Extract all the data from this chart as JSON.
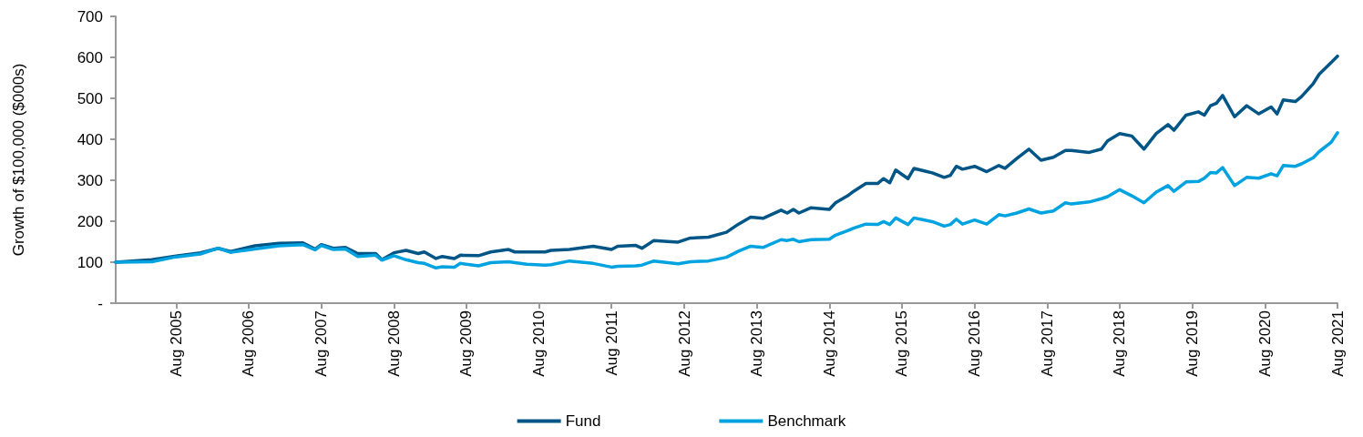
{
  "chart_data": {
    "type": "line",
    "ylabel": "Growth of $100,000 ($000s)",
    "x": [
      "2004-10",
      "2005-04",
      "2005-08",
      "2005-12",
      "2006-03",
      "2006-05",
      "2006-09",
      "2007-01",
      "2007-05",
      "2007-07",
      "2007-08",
      "2007-10",
      "2007-12",
      "2008-02",
      "2008-05",
      "2008-06",
      "2008-08",
      "2008-10",
      "2008-12",
      "2009-01",
      "2009-03",
      "2009-04",
      "2009-06",
      "2009-07",
      "2009-10",
      "2009-12",
      "2010-03",
      "2010-04",
      "2010-06",
      "2010-09",
      "2010-10",
      "2011-01",
      "2011-05",
      "2011-08",
      "2011-09",
      "2011-12",
      "2012-01",
      "2012-03",
      "2012-07",
      "2012-09",
      "2012-12",
      "2013-03",
      "2013-05",
      "2013-07",
      "2013-09",
      "2013-12",
      "2014-01",
      "2014-02",
      "2014-03",
      "2014-05",
      "2014-08",
      "2014-09",
      "2014-11",
      "2014-12",
      "2015-02",
      "2015-04",
      "2015-05",
      "2015-06",
      "2015-07",
      "2015-09",
      "2015-10",
      "2016-01",
      "2016-03",
      "2016-04",
      "2016-05",
      "2016-06",
      "2016-08",
      "2016-10",
      "2016-12",
      "2017-01",
      "2017-03",
      "2017-05",
      "2017-07",
      "2017-09",
      "2017-11",
      "2017-12",
      "2018-03",
      "2018-05",
      "2018-06",
      "2018-08",
      "2018-10",
      "2018-12",
      "2019-02",
      "2019-04",
      "2019-05",
      "2019-07",
      "2019-09",
      "2019-10",
      "2019-11",
      "2019-12",
      "2020-01",
      "2020-03",
      "2020-05",
      "2020-07",
      "2020-09",
      "2020-10",
      "2020-11",
      "2021-01",
      "2021-02",
      "2021-04",
      "2021-05",
      "2021-07",
      "2021-08"
    ],
    "series": [
      {
        "name": "Fund",
        "color": "#005587",
        "values": [
          100,
          106,
          115,
          123,
          134,
          126,
          140,
          146,
          147,
          132,
          143,
          134,
          136,
          121,
          121,
          106,
          123,
          129,
          121,
          125,
          109,
          114,
          109,
          117,
          116,
          125,
          131,
          125,
          125,
          125,
          129,
          131,
          139,
          131,
          139,
          141,
          134,
          153,
          149,
          159,
          161,
          173,
          193,
          210,
          207,
          227,
          220,
          229,
          220,
          233,
          229,
          245,
          262,
          273,
          292,
          292,
          304,
          294,
          325,
          304,
          329,
          318,
          307,
          312,
          334,
          327,
          334,
          321,
          336,
          329,
          353,
          376,
          349,
          356,
          373,
          373,
          368,
          376,
          396,
          414,
          408,
          376,
          414,
          436,
          422,
          459,
          467,
          459,
          482,
          488,
          507,
          455,
          482,
          462,
          479,
          462,
          496,
          492,
          504,
          536,
          559,
          588,
          603
        ]
      },
      {
        "name": "Benchmark",
        "color": "#00a3e0",
        "values": [
          100,
          101,
          113,
          120,
          134,
          124,
          132,
          140,
          143,
          130,
          141,
          131,
          132,
          114,
          117,
          105,
          116,
          106,
          99,
          97,
          86,
          89,
          88,
          97,
          91,
          99,
          101,
          99,
          95,
          93,
          94,
          103,
          97,
          88,
          90,
          91,
          93,
          103,
          96,
          101,
          103,
          112,
          127,
          139,
          136,
          155,
          153,
          156,
          150,
          155,
          156,
          166,
          177,
          183,
          193,
          192,
          199,
          192,
          208,
          192,
          208,
          199,
          188,
          192,
          205,
          193,
          203,
          193,
          216,
          213,
          220,
          230,
          220,
          225,
          245,
          242,
          247,
          255,
          260,
          277,
          262,
          245,
          271,
          287,
          273,
          296,
          297,
          305,
          319,
          318,
          331,
          287,
          307,
          305,
          316,
          311,
          336,
          334,
          340,
          355,
          370,
          393,
          416
        ]
      }
    ],
    "xlim": [
      "2004-10",
      "2021-08"
    ],
    "xticks": [
      {
        "value": "2005-08",
        "label": "Aug 2005"
      },
      {
        "value": "2006-08",
        "label": "Aug 2006"
      },
      {
        "value": "2007-08",
        "label": "Aug 2007"
      },
      {
        "value": "2008-08",
        "label": "Aug 2008"
      },
      {
        "value": "2009-08",
        "label": "Aug 2009"
      },
      {
        "value": "2010-08",
        "label": "Aug 2010"
      },
      {
        "value": "2011-08",
        "label": "Aug 2011"
      },
      {
        "value": "2012-08",
        "label": "Aug 2012"
      },
      {
        "value": "2013-08",
        "label": "Aug 2013"
      },
      {
        "value": "2014-08",
        "label": "Aug 2014"
      },
      {
        "value": "2015-08",
        "label": "Aug 2015"
      },
      {
        "value": "2016-08",
        "label": "Aug 2016"
      },
      {
        "value": "2017-08",
        "label": "Aug 2017"
      },
      {
        "value": "2018-08",
        "label": "Aug 2018"
      },
      {
        "value": "2019-08",
        "label": "Aug 2019"
      },
      {
        "value": "2020-08",
        "label": "Aug 2020"
      },
      {
        "value": "2021-08",
        "label": "Aug 2021"
      }
    ],
    "ylim": [
      0,
      700
    ],
    "yticks": [
      {
        "value": 0,
        "label": "-"
      },
      100,
      200,
      300,
      400,
      500,
      600,
      700
    ],
    "grid": false,
    "legend": "bottom",
    "marker": "none",
    "line_style": "solid"
  }
}
